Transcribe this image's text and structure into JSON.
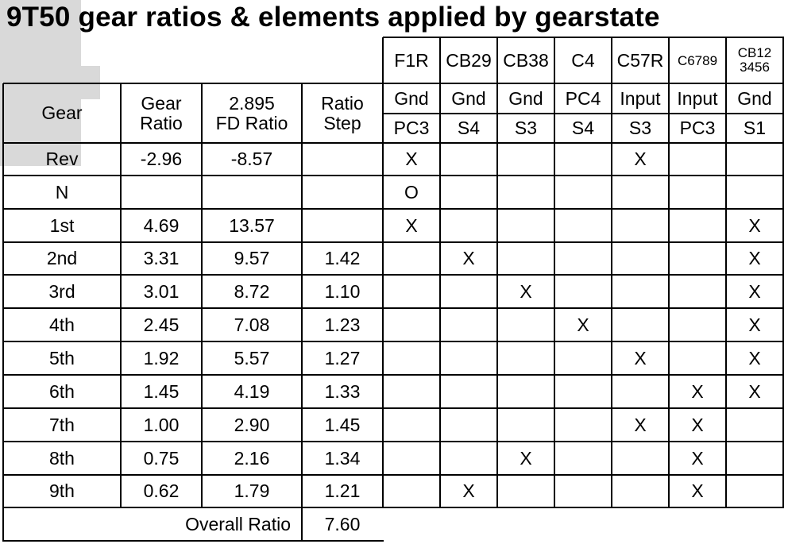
{
  "title": "9T50 gear ratios & elements applied by gearstate",
  "headers": {
    "gear": "Gear",
    "gear_ratio": [
      "Gear",
      "Ratio"
    ],
    "fd_ratio": [
      "2.895",
      "FD Ratio"
    ],
    "ratio_step": [
      "Ratio",
      "Step"
    ]
  },
  "elements": [
    {
      "name": "F1R",
      "name2": "",
      "mode": "Gnd",
      "member": "PC3",
      "small": false
    },
    {
      "name": "CB29",
      "name2": "",
      "mode": "Gnd",
      "member": "S4",
      "small": false
    },
    {
      "name": "CB38",
      "name2": "",
      "mode": "Gnd",
      "member": "S3",
      "small": false
    },
    {
      "name": "C4",
      "name2": "",
      "mode": "PC4",
      "member": "S4",
      "small": false
    },
    {
      "name": "C57R",
      "name2": "",
      "mode": "Input",
      "member": "S3",
      "small": false
    },
    {
      "name": "C6789",
      "name2": "",
      "mode": "Input",
      "member": "PC3",
      "small": true
    },
    {
      "name": "CB12",
      "name2": "3456",
      "mode": "Gnd",
      "member": "S1",
      "small": false
    }
  ],
  "rows": [
    {
      "gear": "Rev",
      "ratio": "-2.96",
      "fd": "-8.57",
      "step": "",
      "grey": [
        false,
        false,
        true
      ],
      "marks": [
        "X",
        "",
        "",
        "",
        "X",
        "",
        ""
      ]
    },
    {
      "gear": "N",
      "ratio": "",
      "fd": "",
      "step": "",
      "grey": [
        true,
        true,
        true
      ],
      "marks": [
        "O",
        "",
        "",
        "",
        "",
        "",
        ""
      ]
    },
    {
      "gear": "1st",
      "ratio": "4.69",
      "fd": "13.57",
      "step": "",
      "grey": [
        false,
        false,
        true
      ],
      "marks": [
        "X",
        "",
        "",
        "",
        "",
        "",
        "X"
      ]
    },
    {
      "gear": "2nd",
      "ratio": "3.31",
      "fd": "9.57",
      "step": "1.42",
      "grey": [
        false,
        false,
        false
      ],
      "marks": [
        "",
        "X",
        "",
        "",
        "",
        "",
        "X"
      ]
    },
    {
      "gear": "3rd",
      "ratio": "3.01",
      "fd": "8.72",
      "step": "1.10",
      "grey": [
        false,
        false,
        false
      ],
      "marks": [
        "",
        "",
        "X",
        "",
        "",
        "",
        "X"
      ]
    },
    {
      "gear": "4th",
      "ratio": "2.45",
      "fd": "7.08",
      "step": "1.23",
      "grey": [
        false,
        false,
        false
      ],
      "marks": [
        "",
        "",
        "",
        "X",
        "",
        "",
        "X"
      ]
    },
    {
      "gear": "5th",
      "ratio": "1.92",
      "fd": "5.57",
      "step": "1.27",
      "grey": [
        false,
        false,
        false
      ],
      "marks": [
        "",
        "",
        "",
        "",
        "X",
        "",
        "X"
      ]
    },
    {
      "gear": "6th",
      "ratio": "1.45",
      "fd": "4.19",
      "step": "1.33",
      "grey": [
        false,
        false,
        false
      ],
      "marks": [
        "",
        "",
        "",
        "",
        "",
        "X",
        "X"
      ]
    },
    {
      "gear": "7th",
      "ratio": "1.00",
      "fd": "2.90",
      "step": "1.45",
      "grey": [
        false,
        false,
        false
      ],
      "marks": [
        "",
        "",
        "",
        "",
        "X",
        "X",
        ""
      ]
    },
    {
      "gear": "8th",
      "ratio": "0.75",
      "fd": "2.16",
      "step": "1.34",
      "grey": [
        false,
        false,
        false
      ],
      "marks": [
        "",
        "",
        "X",
        "",
        "",
        "X",
        ""
      ]
    },
    {
      "gear": "9th",
      "ratio": "0.62",
      "fd": "1.79",
      "step": "1.21",
      "grey": [
        false,
        false,
        false
      ],
      "marks": [
        "",
        "X",
        "",
        "",
        "",
        "X",
        ""
      ]
    }
  ],
  "footer": {
    "label": "Overall Ratio",
    "value": "7.60"
  }
}
